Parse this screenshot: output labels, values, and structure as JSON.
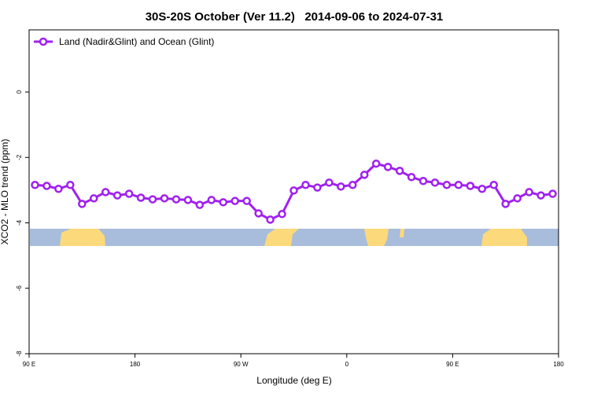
{
  "chart_data": {
    "type": "line",
    "title": "30S-20S October (Ver 11.2)   2014-09-06 to 2024-07-31",
    "xlabel": "Longitude (deg E)",
    "ylabel": "XCO2 - MLO trend (ppm)",
    "x": [
      95,
      105,
      115,
      125,
      135,
      145,
      155,
      165,
      175,
      185,
      195,
      205,
      215,
      225,
      235,
      245,
      255,
      265,
      275,
      285,
      295,
      305,
      315,
      325,
      335,
      345,
      355,
      365,
      375,
      385,
      395,
      405,
      415,
      425,
      435,
      445,
      455,
      465,
      475,
      485,
      495,
      505,
      515,
      525,
      535
    ],
    "series": [
      {
        "name": "Land (Nadir&Glint) and Ocean (Glint)",
        "color": "#a020f0",
        "values": [
          -2.84,
          -2.87,
          -2.96,
          -2.84,
          -3.42,
          -3.25,
          -3.06,
          -3.16,
          -3.11,
          -3.23,
          -3.28,
          -3.25,
          -3.28,
          -3.3,
          -3.45,
          -3.3,
          -3.37,
          -3.33,
          -3.33,
          -3.71,
          -3.9,
          -3.73,
          -3.01,
          -2.84,
          -2.92,
          -2.77,
          -2.89,
          -2.84,
          -2.53,
          -2.19,
          -2.29,
          -2.41,
          -2.6,
          -2.72,
          -2.77,
          -2.84,
          -2.84,
          -2.87,
          -2.96,
          -2.84,
          -3.42,
          -3.25,
          -3.06,
          -3.16,
          -3.11
        ]
      }
    ],
    "xlim": [
      90,
      540
    ],
    "xticks": [
      {
        "value": 90,
        "label": "90 E"
      },
      180,
      {
        "value": 270,
        "label": "90 W"
      },
      {
        "value": 360,
        "label": "0"
      },
      {
        "value": 450,
        "label": "90 E"
      },
      {
        "value": 540,
        "label": "180"
      }
    ],
    "ylim": [
      -8,
      1.9
    ],
    "yticks": [
      0,
      -2,
      -4,
      -6,
      -8
    ],
    "legend": "upper left"
  }
}
